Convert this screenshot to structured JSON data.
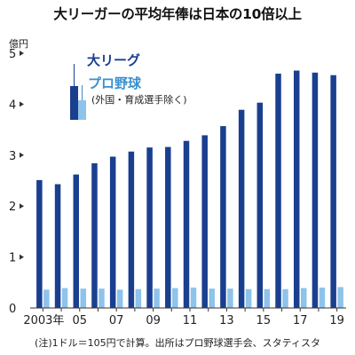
{
  "title": "大リーガーの平均年俸は日本の10倍以上",
  "note": "(注)1ドル＝105円で計算。出所はプロ野球選手会、スタティスタ",
  "colors": {
    "mlb": "#1a3f8f",
    "npb": "#8ec3ea",
    "axis": "#333333",
    "legend_mlb_text": "#1a3f8f",
    "legend_npb_text": "#3a8fd0"
  },
  "chart_data": {
    "type": "bar",
    "unit_label": "億円",
    "ylim": [
      0,
      5
    ],
    "y_ticks": [
      0,
      1,
      2,
      3,
      4,
      5
    ],
    "x": [
      2003,
      2004,
      2005,
      2006,
      2007,
      2008,
      2009,
      2010,
      2011,
      2012,
      2013,
      2014,
      2015,
      2016,
      2017,
      2018,
      2019
    ],
    "x_tick_labels": [
      "2003年",
      "",
      "05",
      "",
      "07",
      "",
      "09",
      "",
      "11",
      "",
      "13",
      "",
      "15",
      "",
      "17",
      "",
      "19"
    ],
    "series": [
      {
        "name": "大リーグ",
        "values": [
          2.51,
          2.43,
          2.62,
          2.84,
          2.97,
          3.07,
          3.15,
          3.16,
          3.28,
          3.39,
          3.57,
          3.89,
          4.03,
          4.6,
          4.66,
          4.62,
          4.57
        ]
      },
      {
        "name": "プロ野球",
        "note": "(外国・育成選手除く)",
        "values": [
          0.36,
          0.39,
          0.38,
          0.38,
          0.36,
          0.37,
          0.38,
          0.39,
          0.4,
          0.38,
          0.38,
          0.37,
          0.37,
          0.37,
          0.39,
          0.4,
          0.41
        ]
      }
    ],
    "legend_placement": "top-left"
  }
}
